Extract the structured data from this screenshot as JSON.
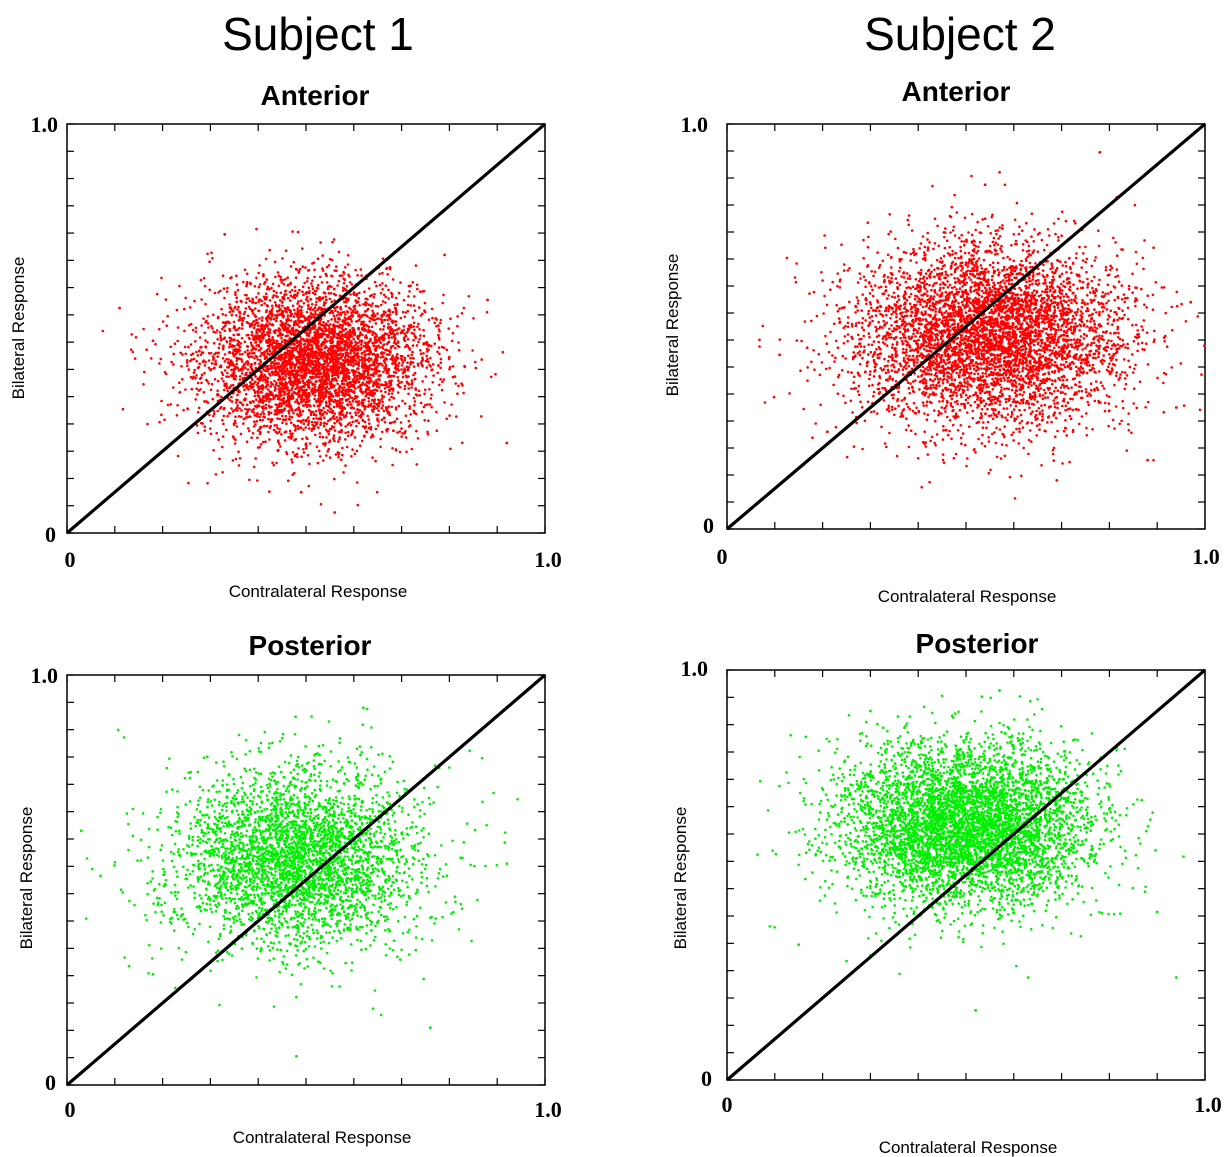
{
  "subjects": [
    "Subject 1",
    "Subject 2"
  ],
  "chart_data": [
    {
      "type": "scatter",
      "title": "Anterior",
      "subject": "Subject 1",
      "xlabel": "Contralateral Response",
      "ylabel": "Bilateral Response",
      "xlim": [
        0,
        1.0
      ],
      "ylim": [
        0,
        1.0
      ],
      "x_tick_labels": [
        "0",
        "1.0"
      ],
      "y_tick_labels": [
        "0",
        "1.0"
      ],
      "color": "#ff0000",
      "reference_line": {
        "from": [
          0,
          0
        ],
        "to": [
          1.0,
          1.0
        ],
        "color": "#000000"
      },
      "distribution": {
        "mean_x": 0.52,
        "mean_y": 0.42,
        "sd_x": 0.12,
        "sd_y": 0.1,
        "count": 4500
      },
      "points_x": [
        0.11,
        0.88,
        0.92,
        0.18,
        0.79,
        0.56,
        0.33,
        0.49
      ],
      "points_y": [
        0.55,
        0.57,
        0.22,
        0.47,
        0.68,
        0.05,
        0.73,
        0.1
      ]
    },
    {
      "type": "scatter",
      "title": "Anterior",
      "subject": "Subject 2",
      "xlabel": "Contralateral Response",
      "ylabel": "Bilateral Response",
      "xlim": [
        0,
        1.0
      ],
      "ylim": [
        0,
        1.0
      ],
      "x_tick_labels": [
        "0",
        "1.0"
      ],
      "y_tick_labels": [
        "0",
        "1.0"
      ],
      "color": "#ff0000",
      "reference_line": {
        "from": [
          0,
          0
        ],
        "to": [
          1.0,
          1.0
        ],
        "color": "#000000"
      },
      "distribution": {
        "mean_x": 0.55,
        "mean_y": 0.48,
        "sd_x": 0.14,
        "sd_y": 0.11,
        "count": 5000
      },
      "points_x": [
        0.11,
        0.78,
        0.97,
        0.94,
        0.69,
        0.54,
        0.88,
        0.21
      ],
      "points_y": [
        0.43,
        0.93,
        0.56,
        0.3,
        0.12,
        0.85,
        0.17,
        0.24
      ]
    },
    {
      "type": "scatter",
      "title": "Posterior",
      "subject": "Subject 1",
      "xlabel": "Contralateral Response",
      "ylabel": "Bilateral Response",
      "xlim": [
        0,
        1.0
      ],
      "ylim": [
        0,
        1.0
      ],
      "x_tick_labels": [
        "0",
        "1.0"
      ],
      "y_tick_labels": [
        "0",
        "1.0"
      ],
      "color": "#00ee00",
      "reference_line": {
        "from": [
          0,
          0
        ],
        "to": [
          1.0,
          1.0
        ],
        "color": "#000000"
      },
      "distribution": {
        "mean_x": 0.48,
        "mean_y": 0.55,
        "sd_x": 0.13,
        "sd_y": 0.11,
        "count": 3500
      },
      "points_x": [
        0.03,
        0.07,
        0.92,
        0.76,
        0.48,
        0.62,
        0.13,
        0.18
      ],
      "points_y": [
        0.62,
        0.51,
        0.54,
        0.14,
        0.07,
        0.92,
        0.29,
        0.27
      ]
    },
    {
      "type": "scatter",
      "title": "Posterior",
      "subject": "Subject 2",
      "xlabel": "Contralateral Response",
      "ylabel": "Bilateral Response",
      "xlim": [
        0,
        1.0
      ],
      "ylim": [
        0,
        1.0
      ],
      "x_tick_labels": [
        "0",
        "1.0"
      ],
      "y_tick_labels": [
        "0",
        "1.0"
      ],
      "color": "#00ee00",
      "reference_line": {
        "from": [
          0,
          0
        ],
        "to": [
          1.0,
          1.0
        ],
        "color": "#000000"
      },
      "distribution": {
        "mean_x": 0.5,
        "mean_y": 0.62,
        "sd_x": 0.13,
        "sd_y": 0.1,
        "count": 5000
      },
      "points_x": [
        0.15,
        0.9,
        0.94,
        0.63,
        0.52,
        0.3,
        0.25,
        0.57
      ],
      "points_y": [
        0.33,
        0.41,
        0.25,
        0.25,
        0.17,
        0.9,
        0.29,
        0.95
      ]
    }
  ]
}
